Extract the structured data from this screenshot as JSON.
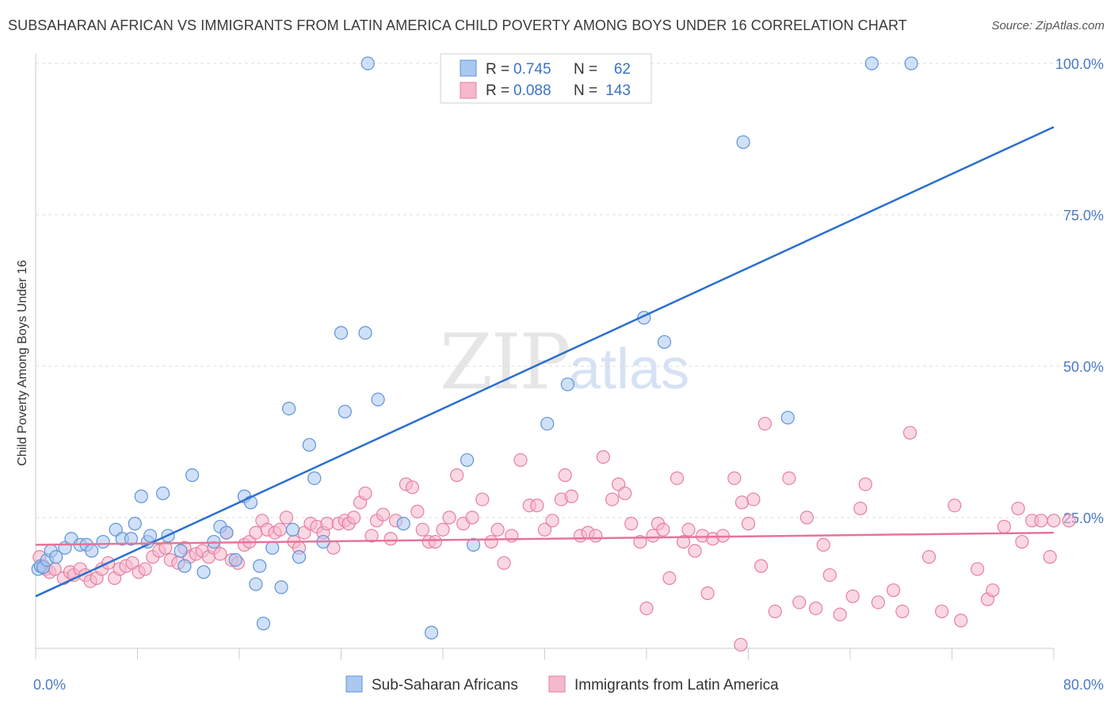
{
  "title": "SUBSAHARAN AFRICAN VS IMMIGRANTS FROM LATIN AMERICA CHILD POVERTY AMONG BOYS UNDER 16 CORRELATION CHART",
  "source": "Source: ZipAtlas.com",
  "watermark": {
    "zip": "ZIP",
    "atlas": "atlas"
  },
  "colors": {
    "blue_fill": "#aac8f0",
    "blue_stroke": "#5f93d8",
    "blue_line": "#2a6fd0",
    "pink_fill": "#f5b8cc",
    "pink_stroke": "#e67fa0",
    "pink_line": "#e8739a",
    "tick_label": "#4a7ac8",
    "grid": "#dddddd"
  },
  "legend": {
    "rows": [
      {
        "r_label": "R = ",
        "r_value": "0.745",
        "n_label": "N = ",
        "n_value": "62"
      },
      {
        "r_label": "R = ",
        "r_value": "0.088",
        "n_label": "N = ",
        "n_value": "143"
      }
    ]
  },
  "bottom_legend": [
    "Sub-Saharan Africans",
    "Immigrants from Latin America"
  ],
  "chart_data": {
    "type": "scatter",
    "title": "SUBSAHARAN AFRICAN VS IMMIGRANTS FROM LATIN AMERICA CHILD POVERTY AMONG BOYS UNDER 16 CORRELATION CHART",
    "xlabel": "",
    "ylabel": "Child Poverty Among Boys Under 16",
    "xlim": [
      0,
      80
    ],
    "ylim": [
      0,
      100
    ],
    "x_tick_labels": [
      "0.0%",
      "80.0%"
    ],
    "y_ticks": [
      25,
      50,
      75,
      100
    ],
    "y_tick_labels": [
      "25.0%",
      "50.0%",
      "75.0%",
      "100.0%"
    ],
    "grid": "horizontal dashed",
    "legend_position": "top-center",
    "series": [
      {
        "name": "Sub-Saharan Africans",
        "R": 0.745,
        "N": 62,
        "trend": {
          "x0": 0,
          "y0": 12,
          "x1": 80,
          "y1": 89.5
        },
        "points": [
          [
            0.2,
            16.5
          ],
          [
            0.4,
            17
          ],
          [
            0.6,
            16.8
          ],
          [
            0.9,
            18
          ],
          [
            1.2,
            19.5
          ],
          [
            1.6,
            18.5
          ],
          [
            2.3,
            20
          ],
          [
            2.8,
            21.5
          ],
          [
            3.5,
            20.5
          ],
          [
            4.0,
            20.5
          ],
          [
            4.4,
            19.5
          ],
          [
            5.3,
            21
          ],
          [
            6.3,
            23
          ],
          [
            6.8,
            21.5
          ],
          [
            7.5,
            21.5
          ],
          [
            7.8,
            24
          ],
          [
            8.3,
            28.5
          ],
          [
            8.8,
            21
          ],
          [
            9.0,
            22
          ],
          [
            10.0,
            29
          ],
          [
            10.4,
            22
          ],
          [
            11.4,
            19.5
          ],
          [
            11.7,
            17
          ],
          [
            12.3,
            32
          ],
          [
            13.2,
            16
          ],
          [
            14.0,
            21
          ],
          [
            14.5,
            23.5
          ],
          [
            15.0,
            22.5
          ],
          [
            15.7,
            18
          ],
          [
            16.4,
            28.5
          ],
          [
            16.9,
            27.5
          ],
          [
            17.3,
            14
          ],
          [
            17.6,
            17
          ],
          [
            17.9,
            7.5
          ],
          [
            18.6,
            20
          ],
          [
            19.3,
            13.5
          ],
          [
            19.9,
            43
          ],
          [
            20.2,
            23
          ],
          [
            20.7,
            18.5
          ],
          [
            21.5,
            37
          ],
          [
            21.9,
            31.5
          ],
          [
            22.6,
            21
          ],
          [
            24.0,
            55.5
          ],
          [
            24.3,
            42.5
          ],
          [
            25.9,
            55.5
          ],
          [
            26.1,
            100
          ],
          [
            26.9,
            44.5
          ],
          [
            28.9,
            24
          ],
          [
            31.1,
            6
          ],
          [
            33.9,
            34.5
          ],
          [
            34.4,
            20.5
          ],
          [
            40.2,
            40.5
          ],
          [
            41.8,
            47
          ],
          [
            47.8,
            58
          ],
          [
            49.4,
            54
          ],
          [
            55.6,
            87
          ],
          [
            59.1,
            41.5
          ],
          [
            65.7,
            100
          ],
          [
            68.8,
            100
          ]
        ]
      },
      {
        "name": "Immigrants from Latin America",
        "R": 0.088,
        "N": 143,
        "trend": {
          "x0": 0,
          "y0": 20.5,
          "x1": 80,
          "y1": 22.5
        },
        "points": [
          [
            0.3,
            18.5
          ],
          [
            0.6,
            17
          ],
          [
            0.8,
            16.5
          ],
          [
            1.1,
            16
          ],
          [
            1.5,
            16.5
          ],
          [
            2.2,
            15
          ],
          [
            2.7,
            16
          ],
          [
            3.0,
            15.5
          ],
          [
            3.5,
            16.5
          ],
          [
            3.9,
            15.5
          ],
          [
            4.3,
            14.5
          ],
          [
            4.8,
            15
          ],
          [
            5.2,
            16.5
          ],
          [
            5.7,
            17.5
          ],
          [
            6.2,
            15
          ],
          [
            6.6,
            16.5
          ],
          [
            7.1,
            17
          ],
          [
            7.6,
            17.5
          ],
          [
            8.1,
            16
          ],
          [
            8.6,
            16.5
          ],
          [
            9.2,
            18.5
          ],
          [
            9.7,
            19.5
          ],
          [
            10.2,
            20
          ],
          [
            10.6,
            18
          ],
          [
            11.2,
            17.5
          ],
          [
            11.7,
            20
          ],
          [
            12.1,
            18.5
          ],
          [
            12.6,
            19
          ],
          [
            13.1,
            19.5
          ],
          [
            13.6,
            18.5
          ],
          [
            14.0,
            20
          ],
          [
            14.5,
            19
          ],
          [
            15.0,
            22.5
          ],
          [
            15.4,
            18
          ],
          [
            15.9,
            17.5
          ],
          [
            16.4,
            20.5
          ],
          [
            16.8,
            21
          ],
          [
            17.3,
            22.5
          ],
          [
            17.8,
            24.5
          ],
          [
            18.2,
            23
          ],
          [
            18.8,
            22.5
          ],
          [
            19.2,
            23
          ],
          [
            19.7,
            25
          ],
          [
            20.3,
            21
          ],
          [
            20.7,
            20
          ],
          [
            21.1,
            22.5
          ],
          [
            21.6,
            24
          ],
          [
            22.1,
            23.5
          ],
          [
            22.6,
            22.5
          ],
          [
            22.9,
            24
          ],
          [
            23.4,
            20
          ],
          [
            23.8,
            24
          ],
          [
            24.3,
            24.5
          ],
          [
            24.6,
            24
          ],
          [
            25.0,
            25
          ],
          [
            25.5,
            27.5
          ],
          [
            25.9,
            29
          ],
          [
            26.4,
            22
          ],
          [
            26.8,
            24.5
          ],
          [
            27.3,
            25.5
          ],
          [
            27.9,
            21.5
          ],
          [
            28.3,
            24.5
          ],
          [
            29.1,
            30.5
          ],
          [
            29.6,
            30
          ],
          [
            30.0,
            26
          ],
          [
            30.4,
            23
          ],
          [
            30.9,
            21
          ],
          [
            31.4,
            21
          ],
          [
            32.0,
            23
          ],
          [
            32.5,
            25
          ],
          [
            33.1,
            32
          ],
          [
            33.6,
            24
          ],
          [
            34.3,
            25
          ],
          [
            35.1,
            28
          ],
          [
            35.8,
            21
          ],
          [
            36.3,
            23
          ],
          [
            36.8,
            17.5
          ],
          [
            37.4,
            22
          ],
          [
            38.1,
            34.5
          ],
          [
            38.8,
            27
          ],
          [
            39.4,
            27
          ],
          [
            40.0,
            23
          ],
          [
            40.6,
            24.5
          ],
          [
            41.3,
            28
          ],
          [
            41.6,
            32
          ],
          [
            42.1,
            28.5
          ],
          [
            42.8,
            22
          ],
          [
            43.4,
            22.5
          ],
          [
            44.0,
            22
          ],
          [
            44.6,
            35
          ],
          [
            45.3,
            28
          ],
          [
            45.8,
            30.5
          ],
          [
            46.3,
            29
          ],
          [
            46.8,
            24
          ],
          [
            47.5,
            21
          ],
          [
            48.0,
            10
          ],
          [
            48.5,
            22
          ],
          [
            48.9,
            24
          ],
          [
            49.3,
            23
          ],
          [
            49.8,
            15
          ],
          [
            50.4,
            31.5
          ],
          [
            50.9,
            21
          ],
          [
            51.3,
            23
          ],
          [
            51.8,
            19.5
          ],
          [
            52.4,
            22
          ],
          [
            52.8,
            12.5
          ],
          [
            53.2,
            21.5
          ],
          [
            54.0,
            22
          ],
          [
            54.9,
            31.5
          ],
          [
            55.5,
            27.5
          ],
          [
            56.0,
            24
          ],
          [
            56.4,
            28
          ],
          [
            57.0,
            17
          ],
          [
            57.3,
            40.5
          ],
          [
            58.1,
            9.5
          ],
          [
            59.2,
            31.5
          ],
          [
            60.0,
            11
          ],
          [
            60.6,
            25
          ],
          [
            61.3,
            10
          ],
          [
            61.9,
            20.5
          ],
          [
            62.4,
            15.5
          ],
          [
            63.2,
            9
          ],
          [
            64.2,
            12
          ],
          [
            64.8,
            26.5
          ],
          [
            65.2,
            30.5
          ],
          [
            66.2,
            11
          ],
          [
            67.4,
            13
          ],
          [
            68.1,
            9.5
          ],
          [
            68.7,
            39
          ],
          [
            70.2,
            18.5
          ],
          [
            71.2,
            9.5
          ],
          [
            72.2,
            27
          ],
          [
            72.7,
            8
          ],
          [
            74.0,
            16.5
          ],
          [
            74.8,
            11.5
          ],
          [
            75.2,
            13
          ],
          [
            76.1,
            23.5
          ],
          [
            77.2,
            26.5
          ],
          [
            77.5,
            21
          ],
          [
            78.3,
            24.5
          ],
          [
            79.0,
            24.5
          ],
          [
            79.7,
            18.5
          ],
          [
            80.0,
            24.5
          ],
          [
            81.2,
            24.5
          ],
          [
            55.4,
            4
          ]
        ]
      }
    ]
  }
}
